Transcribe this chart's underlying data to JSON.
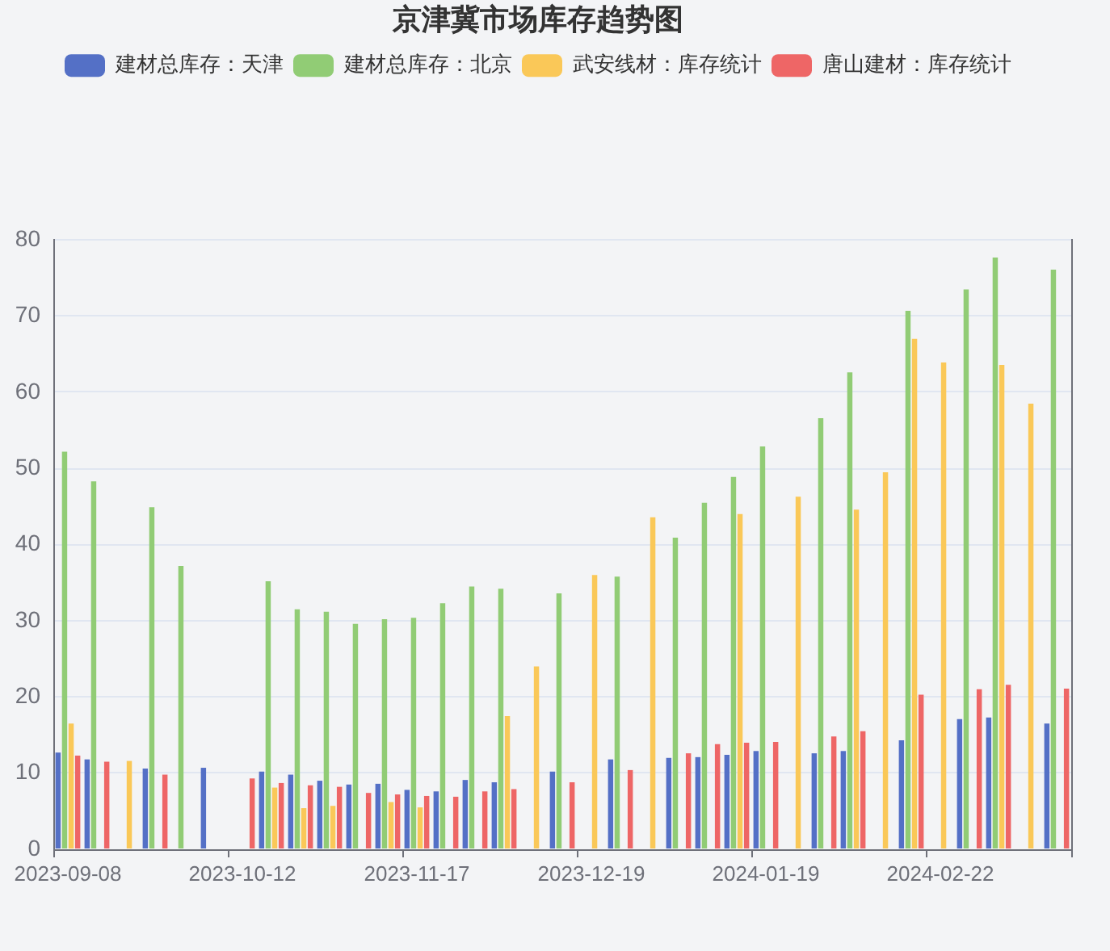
{
  "chart_data": {
    "type": "bar",
    "title": "京津冀市场库存趋势图",
    "categories": [
      "2023-09-08",
      null,
      null,
      null,
      null,
      null,
      "2023-10-12",
      null,
      null,
      null,
      null,
      null,
      "2023-11-17",
      null,
      null,
      null,
      null,
      null,
      "2023-12-19",
      null,
      null,
      null,
      null,
      null,
      "2024-01-19",
      null,
      null,
      null,
      null,
      null,
      "2024-02-22",
      null,
      null,
      null,
      null
    ],
    "series": [
      {
        "name": "建材总库存：天津",
        "color": "#5470c6",
        "values": [
          12.7,
          11.8,
          null,
          10.6,
          null,
          10.7,
          null,
          10.2,
          9.8,
          9.0,
          8.5,
          8.6,
          7.8,
          7.6,
          9.1,
          8.8,
          null,
          10.2,
          null,
          11.8,
          null,
          12.0,
          12.1,
          12.4,
          12.9,
          null,
          12.6,
          12.9,
          null,
          14.3,
          null,
          17.1,
          17.3,
          null,
          16.5
        ]
      },
      {
        "name": "建材总库存：北京",
        "color": "#91cc75",
        "values": [
          52.2,
          48.3,
          null,
          44.9,
          37.2,
          null,
          null,
          35.2,
          31.5,
          31.2,
          29.6,
          30.2,
          30.4,
          32.3,
          34.5,
          34.2,
          null,
          33.6,
          null,
          35.8,
          null,
          40.9,
          45.5,
          48.9,
          52.9,
          null,
          56.6,
          62.6,
          null,
          70.7,
          null,
          73.5,
          77.7,
          null,
          76.1
        ]
      },
      {
        "name": "武安线材：库存统计",
        "color": "#fac858",
        "values": [
          16.5,
          null,
          11.6,
          null,
          null,
          null,
          null,
          8.1,
          5.4,
          5.7,
          null,
          6.2,
          5.5,
          null,
          null,
          17.5,
          24.0,
          null,
          36.0,
          null,
          43.6,
          null,
          null,
          44.0,
          null,
          46.3,
          null,
          44.6,
          49.5,
          67.0,
          63.9,
          null,
          63.6,
          58.5,
          null
        ]
      },
      {
        "name": "唐山建材：库存统计",
        "color": "#ee6666",
        "values": [
          12.3,
          11.5,
          null,
          9.8,
          null,
          null,
          9.3,
          8.7,
          8.4,
          8.2,
          7.4,
          7.2,
          7.0,
          6.9,
          7.6,
          7.9,
          null,
          8.8,
          null,
          10.4,
          null,
          12.6,
          13.8,
          14.0,
          14.1,
          null,
          14.8,
          15.5,
          null,
          20.3,
          null,
          21.0,
          21.6,
          null,
          21.1
        ]
      }
    ],
    "ylim": [
      0,
      80
    ],
    "yticks": [
      0,
      10,
      20,
      30,
      40,
      50,
      60,
      70,
      80
    ],
    "grid": "y",
    "legend": "top"
  }
}
